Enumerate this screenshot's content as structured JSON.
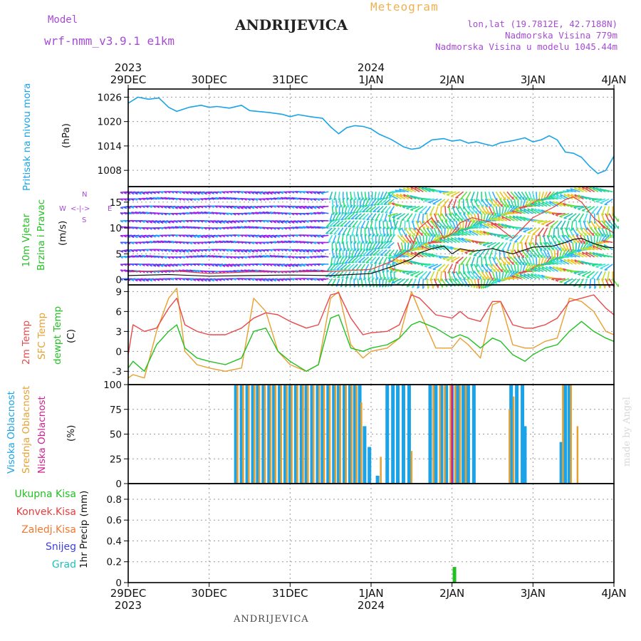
{
  "header": {
    "model_label": "Model",
    "model_name": "wrf-nmm_v3.9.1 e1km",
    "station": "ANDRIJEVICA",
    "product": "Meteogram",
    "lonlat": "lon,lat (19.7812E, 42.7188N)",
    "elevation": "Nadmorska Visina 779m",
    "model_elevation": "Nadmorska Visina u modelu 1045.44m"
  },
  "time_axis": {
    "labels": [
      "29DEC",
      "30DEC",
      "31DEC",
      "1JAN",
      "2JAN",
      "3JAN",
      "4JAN"
    ],
    "top_years": [
      {
        "label": "2023",
        "at": 0
      },
      {
        "label": "2024",
        "at": 3
      }
    ],
    "bottom_years": [
      {
        "label": "2023",
        "at": 0
      },
      {
        "label": "2024",
        "at": 3
      }
    ]
  },
  "footer": {
    "station": "ANDRIJEVICA",
    "credit": "made by Angel"
  },
  "colors": {
    "pressure": "#1aa3e8",
    "wind_speed_line": "#111111",
    "wind_gust_line": "#e83c3c",
    "temp2m": "#e84a4a",
    "sfc_temp": "#e8a030",
    "dewpt": "#22c022",
    "high_cloud": "#1aa3e8",
    "mid_cloud": "#e8a030",
    "low_cloud": "#d02090",
    "total_precip": "#22c022",
    "conv_precip": "#e83c3c",
    "frz_precip": "#f07830",
    "snow": "#4040e0",
    "graupel": "#20c0c0",
    "label_purple": "#a64bd6"
  },
  "chart_data": [
    {
      "type": "line",
      "title": "Pritisak na nivou mora",
      "ylabel": "(hPa)",
      "ylim": [
        1004,
        1028
      ],
      "yticks": [
        1008,
        1014,
        1020,
        1026
      ],
      "grid": true,
      "x_unit": "days since 29DEC 00h",
      "series": [
        {
          "name": "Pritisak na nivou mora",
          "x": [
            0,
            0.12,
            0.25,
            0.38,
            0.5,
            0.6,
            0.75,
            0.9,
            1.0,
            1.1,
            1.25,
            1.4,
            1.5,
            1.6,
            1.75,
            1.9,
            2.0,
            2.1,
            2.25,
            2.4,
            2.5,
            2.6,
            2.7,
            2.8,
            2.9,
            3.0,
            3.1,
            3.25,
            3.4,
            3.5,
            3.6,
            3.75,
            3.9,
            4.0,
            4.1,
            4.2,
            4.3,
            4.4,
            4.5,
            4.6,
            4.75,
            4.9,
            5.0,
            5.1,
            5.2,
            5.3,
            5.4,
            5.5,
            5.6,
            5.7,
            5.8,
            5.9,
            6.0
          ],
          "values": [
            1024.5,
            1026.0,
            1025.5,
            1025.8,
            1023.5,
            1022.5,
            1023.5,
            1024.0,
            1023.5,
            1023.7,
            1023.3,
            1024.0,
            1022.7,
            1022.5,
            1022.2,
            1021.8,
            1021.2,
            1021.7,
            1021.2,
            1020.8,
            1018.7,
            1017.0,
            1018.5,
            1019.0,
            1018.8,
            1018.2,
            1016.9,
            1015.6,
            1013.8,
            1013.2,
            1013.5,
            1015.5,
            1015.8,
            1015.2,
            1015.5,
            1014.7,
            1015.0,
            1014.5,
            1014.0,
            1014.8,
            1015.3,
            1016.0,
            1015.0,
            1015.5,
            1016.5,
            1015.5,
            1012.5,
            1012.2,
            1011.2,
            1009.0,
            1007.2,
            1008.0,
            1011.5
          ]
        }
      ]
    },
    {
      "type": "line",
      "title": "10m Vjetar Brzina i Pravac",
      "ylabel": "(m/s)",
      "ylim": [
        -1,
        18
      ],
      "yticks": [
        0,
        5,
        10,
        15
      ],
      "grid": true,
      "compass": {
        "n": "N",
        "e": "E",
        "w": "W",
        "s": "S"
      },
      "series": [
        {
          "name": "speed",
          "x": [
            0,
            0.5,
            1.0,
            1.5,
            2.0,
            2.5,
            3.0,
            3.25,
            3.5,
            3.6,
            3.75,
            3.9,
            4.0,
            4.1,
            4.25,
            4.5,
            4.75,
            5.0,
            5.25,
            5.4,
            5.5,
            5.6,
            5.75,
            5.9,
            6.0
          ],
          "values": [
            0.8,
            1.0,
            0.7,
            0.8,
            0.9,
            0.8,
            1.2,
            2.5,
            4.0,
            5.2,
            6.0,
            6.5,
            5.0,
            6.0,
            5.5,
            6.0,
            5.0,
            6.3,
            6.5,
            7.2,
            7.8,
            8.0,
            7.0,
            6.3,
            6.2
          ]
        },
        {
          "name": "gust",
          "x": [
            0,
            0.5,
            1.0,
            1.5,
            2.0,
            2.5,
            3.0,
            3.25,
            3.5,
            3.6,
            3.75,
            3.9,
            4.0,
            4.1,
            4.25,
            4.5,
            4.75,
            5.0,
            5.25,
            5.4,
            5.5,
            5.6,
            5.75,
            5.9,
            6.0
          ],
          "values": [
            1.5,
            1.8,
            1.2,
            1.5,
            1.5,
            1.6,
            2.0,
            3.5,
            6.0,
            10.0,
            12.0,
            8.0,
            9.0,
            11.0,
            12.0,
            11.0,
            8.0,
            12.0,
            14.0,
            15.5,
            16.0,
            15.0,
            12.0,
            10.0,
            9.0
          ]
        }
      ]
    },
    {
      "type": "line",
      "title": "2m Temp / SFC Temp / dewpt Temp",
      "ylabel": "(C)",
      "ylim": [
        -5,
        10
      ],
      "yticks": [
        -3,
        0,
        3,
        6,
        9
      ],
      "grid": true,
      "legend": [
        "2m Temp",
        "SFC Temp",
        "dewpt Temp"
      ],
      "series": [
        {
          "name": "2m Temp",
          "x": [
            0,
            0.06,
            0.2,
            0.35,
            0.5,
            0.6,
            0.7,
            0.85,
            1.0,
            1.2,
            1.4,
            1.55,
            1.7,
            1.85,
            2.0,
            2.2,
            2.35,
            2.5,
            2.6,
            2.75,
            2.9,
            3.0,
            3.2,
            3.35,
            3.5,
            3.6,
            3.8,
            4.0,
            4.1,
            4.2,
            4.35,
            4.5,
            4.6,
            4.75,
            4.9,
            5.0,
            5.15,
            5.3,
            5.45,
            5.6,
            5.75,
            5.9,
            6.0
          ],
          "values": [
            -0.5,
            4.0,
            3.0,
            3.5,
            6.5,
            8.0,
            4.0,
            3.0,
            2.5,
            2.5,
            3.5,
            5.0,
            5.8,
            5.5,
            4.5,
            3.5,
            4.0,
            8.5,
            8.8,
            5.0,
            2.5,
            2.8,
            3.0,
            4.0,
            8.5,
            8.0,
            5.5,
            5.0,
            6.0,
            5.0,
            4.5,
            7.5,
            7.5,
            4.0,
            3.5,
            3.5,
            4.0,
            5.0,
            7.5,
            8.0,
            8.5,
            6.5,
            5.5
          ]
        },
        {
          "name": "SFC Temp",
          "x": [
            0,
            0.06,
            0.2,
            0.35,
            0.5,
            0.6,
            0.7,
            0.85,
            1.0,
            1.2,
            1.4,
            1.55,
            1.7,
            1.85,
            2.0,
            2.2,
            2.35,
            2.5,
            2.6,
            2.75,
            2.9,
            3.0,
            3.2,
            3.35,
            3.5,
            3.6,
            3.8,
            4.0,
            4.1,
            4.2,
            4.35,
            4.5,
            4.6,
            4.75,
            4.9,
            5.0,
            5.15,
            5.3,
            5.45,
            5.6,
            5.75,
            5.9,
            6.0
          ],
          "values": [
            -4.0,
            -3.5,
            -4.0,
            3.0,
            8.0,
            9.5,
            0.0,
            -2.0,
            -2.5,
            -3.0,
            -2.5,
            8.0,
            6.0,
            0.0,
            -2.0,
            -3.0,
            -2.0,
            8.0,
            9.0,
            1.0,
            -1.0,
            0.0,
            0.5,
            2.0,
            9.0,
            6.0,
            0.5,
            0.5,
            2.0,
            1.0,
            -1.0,
            7.0,
            7.5,
            1.0,
            0.5,
            0.5,
            1.5,
            2.0,
            8.0,
            7.5,
            6.0,
            3.0,
            2.5
          ]
        },
        {
          "name": "dewpt Temp",
          "x": [
            0,
            0.06,
            0.2,
            0.35,
            0.5,
            0.6,
            0.7,
            0.85,
            1.0,
            1.2,
            1.4,
            1.55,
            1.7,
            1.85,
            2.0,
            2.2,
            2.35,
            2.5,
            2.6,
            2.75,
            2.9,
            3.0,
            3.2,
            3.35,
            3.5,
            3.6,
            3.8,
            4.0,
            4.1,
            4.2,
            4.35,
            4.5,
            4.6,
            4.75,
            4.9,
            5.0,
            5.15,
            5.3,
            5.45,
            5.6,
            5.75,
            5.9,
            6.0
          ],
          "values": [
            -2.5,
            -1.5,
            -3.0,
            1.0,
            3.0,
            4.0,
            0.5,
            -1.0,
            -1.5,
            -2.0,
            -1.0,
            3.0,
            3.5,
            0.0,
            -1.5,
            -3.0,
            -2.0,
            5.0,
            5.5,
            0.5,
            0.0,
            0.5,
            1.0,
            2.0,
            4.0,
            4.5,
            3.5,
            2.0,
            2.5,
            2.0,
            0.5,
            2.0,
            1.5,
            -0.5,
            -1.5,
            -0.5,
            0.5,
            1.0,
            3.0,
            4.5,
            3.0,
            2.0,
            1.5
          ]
        }
      ]
    },
    {
      "type": "bar",
      "title": "Visoka / Srednja / Niska Oblacnost",
      "ylabel": "(%)",
      "ylim": [
        0,
        100
      ],
      "yticks": [
        0,
        25,
        50,
        75,
        100
      ],
      "grid": true,
      "legend": [
        "Visoka Oblacnost",
        "Srednja Oblacnost",
        "Niska Oblacnost"
      ],
      "series": [
        {
          "name": "Visoka Oblacnost",
          "x": [
            1.33,
            1.4,
            1.47,
            1.54,
            1.6,
            1.67,
            1.74,
            1.8,
            1.87,
            1.94,
            2.0,
            2.07,
            2.14,
            2.2,
            2.27,
            2.34,
            2.4,
            2.47,
            2.54,
            2.6,
            2.67,
            2.74,
            2.8,
            2.86,
            2.92,
            2.98,
            3.08,
            3.2,
            3.27,
            3.33,
            3.4,
            3.47,
            3.73,
            3.8,
            3.87,
            3.93,
            4.0,
            4.07,
            4.14,
            4.2,
            4.27,
            4.73,
            4.8,
            4.87,
            4.9,
            5.35,
            5.4,
            5.45
          ],
          "values": [
            100,
            100,
            100,
            100,
            100,
            100,
            100,
            100,
            100,
            100,
            100,
            100,
            100,
            100,
            100,
            100,
            100,
            100,
            100,
            100,
            100,
            100,
            100,
            100,
            58,
            37,
            8,
            100,
            100,
            100,
            100,
            100,
            100,
            100,
            100,
            100,
            100,
            100,
            100,
            100,
            100,
            100,
            100,
            100,
            58,
            42,
            100,
            100
          ]
        },
        {
          "name": "Srednja Oblacnost",
          "x": [
            1.35,
            1.42,
            1.49,
            1.56,
            1.62,
            1.69,
            1.76,
            1.82,
            1.89,
            1.96,
            2.02,
            2.09,
            2.16,
            2.22,
            2.29,
            2.36,
            2.42,
            2.49,
            2.56,
            2.62,
            2.69,
            2.76,
            2.82,
            2.88,
            3.12,
            3.5,
            3.77,
            3.85,
            3.91,
            3.98,
            4.04,
            4.1,
            4.17,
            4.71,
            4.76,
            5.37,
            5.47,
            5.55
          ],
          "values": [
            100,
            100,
            100,
            100,
            100,
            100,
            100,
            100,
            100,
            100,
            100,
            100,
            100,
            100,
            100,
            100,
            100,
            100,
            100,
            100,
            100,
            100,
            100,
            82,
            27,
            33,
            100,
            100,
            100,
            100,
            100,
            100,
            100,
            75,
            88,
            100,
            100,
            58
          ]
        },
        {
          "name": "Niska Oblacnost",
          "x": [
            4.0
          ],
          "values": [
            100
          ]
        }
      ]
    },
    {
      "type": "bar",
      "title": "1hr Precip",
      "ylabel": "1hr Precip (mm)",
      "ylim": [
        0,
        0.95
      ],
      "yticks": [
        0,
        0.2,
        0.4,
        0.6,
        0.8
      ],
      "grid": true,
      "legend": [
        "Ukupna Kisa",
        "Konvek.Kisa",
        "Zaledj.Kisa",
        "Snijeg",
        "Grad"
      ],
      "series": [
        {
          "name": "Ukupna Kisa",
          "x": [
            4.03
          ],
          "values": [
            0.15
          ]
        }
      ]
    }
  ]
}
